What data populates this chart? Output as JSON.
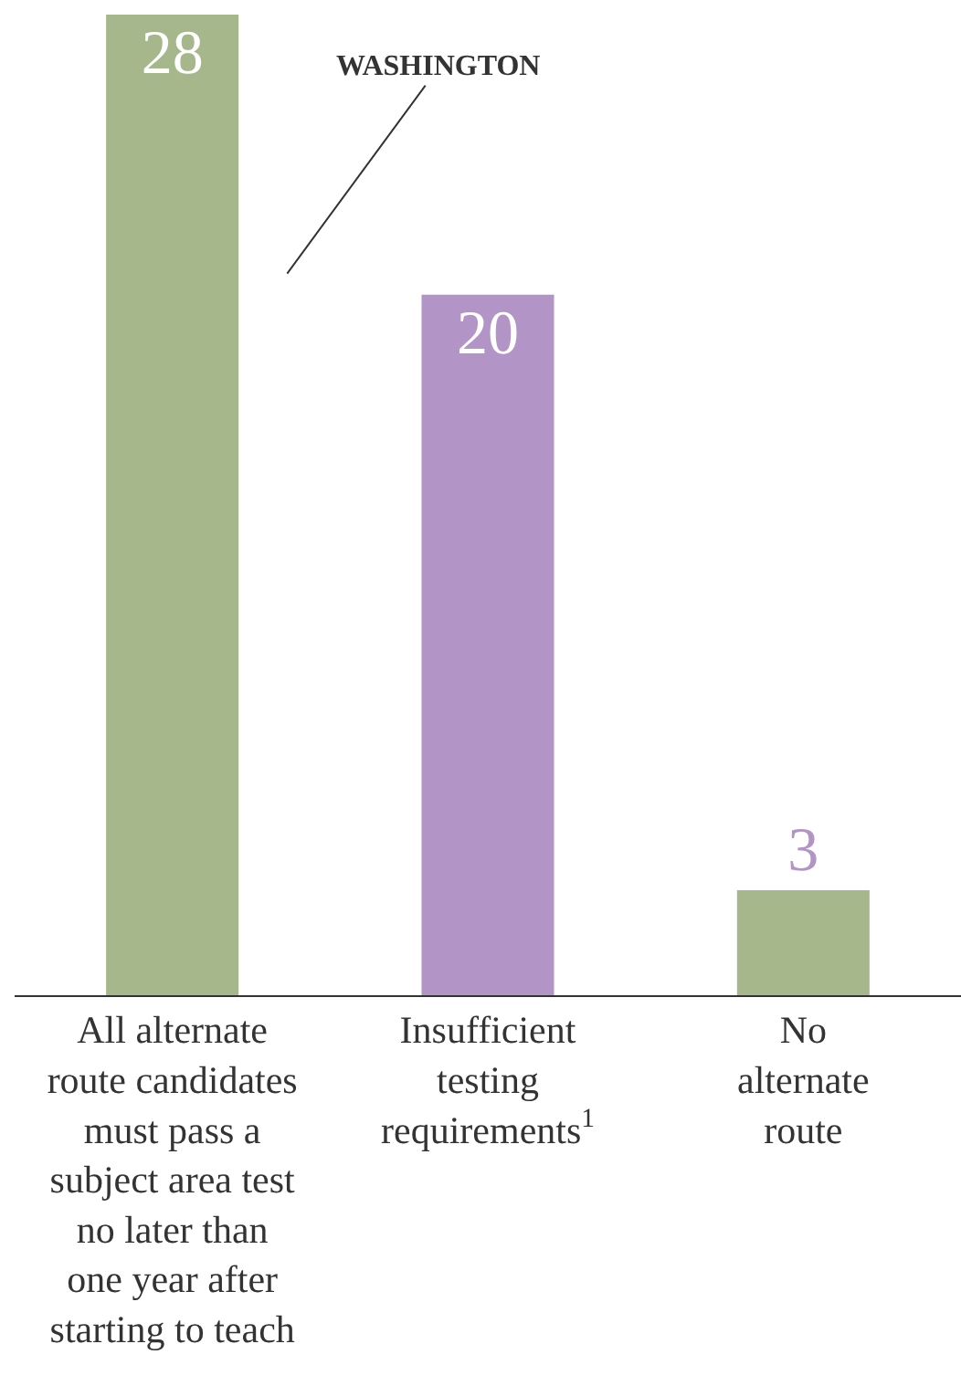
{
  "chart_data": {
    "type": "bar",
    "categories": [
      "All alternate\nroute candidates\nmust pass a\nsubject area test\nno later than\none year after\nstarting to teach",
      "Insufficient\ntesting\nrequirements$^{1}$",
      "No\nalternate\nroute"
    ],
    "values": [
      28,
      20,
      3
    ],
    "colors": [
      "#a6b78c",
      "#b394c6",
      "#a6b78c"
    ],
    "ylim": [
      0,
      28
    ],
    "data_labels": true,
    "tick_labels": "x",
    "legend": false,
    "annotations": [
      "WASHINGTON"
    ]
  }
}
